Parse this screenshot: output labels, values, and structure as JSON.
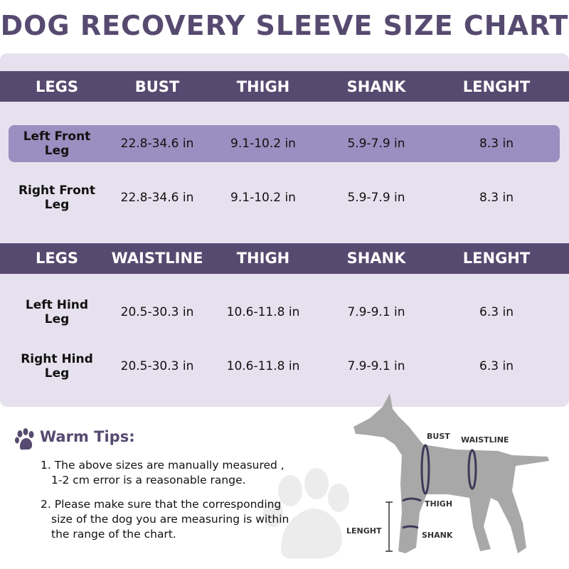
{
  "title": "DOG RECOVERY SLEEVE SIZE CHART",
  "tables": [
    {
      "header": [
        "LEGS",
        "BUST",
        "THIGH",
        "SHANK",
        "LENGHT"
      ],
      "rows": [
        [
          "Left Front Leg",
          "22.8-34.6 in",
          "9.1-10.2 in",
          "5.9-7.9 in",
          "8.3 in"
        ],
        [
          "Right Front Leg",
          "22.8-34.6 in",
          "9.1-10.2 in",
          "5.9-7.9 in",
          "8.3 in"
        ]
      ]
    },
    {
      "header": [
        "LEGS",
        "WAISTLINE",
        "THIGH",
        "SHANK",
        "LENGHT"
      ],
      "rows": [
        [
          "Left Hind Leg",
          "20.5-30.3 in",
          "10.6-11.8 in",
          "7.9-9.1 in",
          "6.3 in"
        ],
        [
          "Right Hind Leg",
          "20.5-30.3 in",
          "10.6-11.8 in",
          "7.9-9.1 in",
          "6.3 in"
        ]
      ]
    }
  ],
  "tips": {
    "title": "Warm Tips:",
    "items": [
      [
        "1. The above sizes are manually measured ,",
        "1-2 cm error is a reasonable range."
      ],
      [
        "2. Please make sure that the corresponding",
        "size of the dog you are measuring is within",
        "the range of the chart."
      ]
    ]
  },
  "diagram": {
    "labels": [
      "BUST",
      "WAISTLINE",
      "THIGH",
      "SHANK",
      "LENGHT"
    ]
  }
}
